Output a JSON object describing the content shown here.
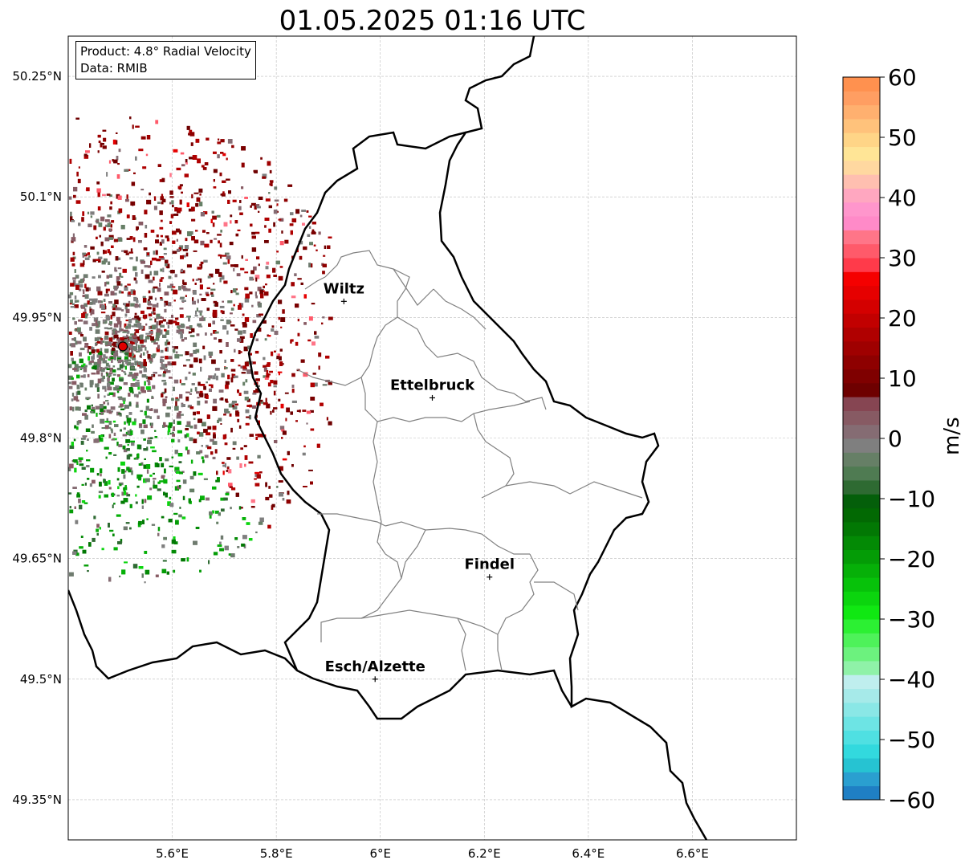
{
  "title": "01.05.2025 01:16 UTC",
  "info": {
    "product": "Product: 4.8° Radial Velocity",
    "data": "Data: RMIB"
  },
  "map": {
    "lon_ticks": [
      {
        "value": 5.6,
        "label": "5.6°E"
      },
      {
        "value": 5.8,
        "label": "5.8°E"
      },
      {
        "value": 6.0,
        "label": "6°E"
      },
      {
        "value": 6.2,
        "label": "6.2°E"
      },
      {
        "value": 6.4,
        "label": "6.4°E"
      },
      {
        "value": 6.6,
        "label": "6.6°E"
      }
    ],
    "lat_ticks": [
      {
        "value": 50.25,
        "label": "50.25°N"
      },
      {
        "value": 50.1,
        "label": "50.1°N"
      },
      {
        "value": 49.95,
        "label": "49.95°N"
      },
      {
        "value": 49.8,
        "label": "49.8°N"
      },
      {
        "value": 49.65,
        "label": "49.65°N"
      },
      {
        "value": 49.5,
        "label": "49.5°N"
      },
      {
        "value": 49.35,
        "label": "49.35°N"
      }
    ],
    "lon_range": [
      5.4,
      6.8
    ],
    "lat_range": [
      49.3,
      50.3
    ],
    "radar_site": {
      "lon": 5.505,
      "lat": 49.914,
      "color": "#e00000"
    },
    "cities": [
      {
        "name": "Wiltz",
        "lon": 5.93,
        "lat": 49.97
      },
      {
        "name": "Ettelbruck",
        "lon": 6.1,
        "lat": 49.85
      },
      {
        "name": "Findel",
        "lon": 6.21,
        "lat": 49.627
      },
      {
        "name": "Esch/Alzette",
        "lon": 5.99,
        "lat": 49.5
      }
    ]
  },
  "colorbar": {
    "unit": "m/s",
    "ticks": [
      "60",
      "50",
      "40",
      "30",
      "20",
      "10",
      "0",
      "−10",
      "−20",
      "−30",
      "−40",
      "−50",
      "−60"
    ],
    "tick_values": [
      60,
      50,
      40,
      30,
      20,
      10,
      0,
      -10,
      -20,
      -30,
      -40,
      -50,
      -60
    ],
    "range": [
      -60,
      60
    ],
    "colors": [
      "#1f7fc4",
      "#2a9fd0",
      "#26c3d2",
      "#32d9de",
      "#4fe0e2",
      "#6de4e4",
      "#8ae7e6",
      "#a6eae9",
      "#bfeeee",
      "#8ff2a8",
      "#6cf27e",
      "#4ef25a",
      "#2cf033",
      "#10e812",
      "#0bd50e",
      "#07c20a",
      "#06b008",
      "#049c06",
      "#038a05",
      "#027804",
      "#026903",
      "#045f0a",
      "#2e6a32",
      "#4f7b52",
      "#667f66",
      "#7f7f7f",
      "#856c73",
      "#875a63",
      "#864552",
      "#6e0000",
      "#7f0000",
      "#8e0000",
      "#9f0000",
      "#b00000",
      "#c20000",
      "#d40000",
      "#e60000",
      "#f50000",
      "#ff3a4a",
      "#ff5a6a",
      "#ff7588",
      "#ff8ac8",
      "#ff96cc",
      "#ffa7c0",
      "#ffbfb0",
      "#ffd8a0",
      "#ffe596",
      "#ffd587",
      "#ffc27b",
      "#ffb06f",
      "#ff9e62",
      "#ff914f"
    ]
  }
}
